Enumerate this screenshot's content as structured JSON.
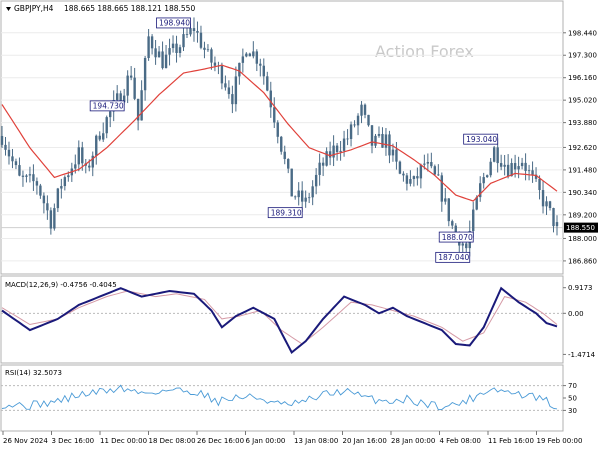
{
  "symbol_label": "GBPJPY,H4",
  "ohlc_label": "188.665 188.665 188.121 188.550",
  "watermark": "Action Forex",
  "colors": {
    "candle": "#4a6b86",
    "ma": "#e0413a",
    "macd_line": "#1a1a7a",
    "macd_signal": "#d59aa6",
    "rsi_line": "#4a9ad6",
    "annotation": "#1a1a7a",
    "price_tag_bg": "#000000",
    "watermark": "#c9c9c9"
  },
  "chart_data": [
    {
      "type": "candlestick",
      "panel": "price",
      "y_ticks": [
        198.44,
        197.3,
        196.16,
        195.02,
        193.88,
        192.62,
        191.48,
        190.34,
        189.2,
        188.0,
        186.86
      ],
      "ylim": [
        186.5,
        199.8
      ],
      "current_price": 188.55,
      "overlay": "moving average (red line)",
      "annotations": [
        {
          "label": "198.940",
          "value": 198.94
        },
        {
          "label": "188.070",
          "value": 188.07
        },
        {
          "label": "189.310",
          "value": 189.31
        },
        {
          "label": "194.730",
          "value": 194.73
        },
        {
          "label": "187.040",
          "value": 187.04
        },
        {
          "label": "193.040",
          "value": 193.04
        }
      ],
      "x_labels": [
        "26 Nov 2024",
        "3 Dec 16:00",
        "11 Dec 00:00",
        "18 Dec 08:00",
        "26 Dec 16:00",
        "6 Jan 00:00",
        "13 Jan 08:00",
        "20 Jan 16:00",
        "28 Jan 00:00",
        "4 Feb 08:00",
        "11 Feb 16:00",
        "19 Feb 00:00"
      ],
      "anchors_price": [
        [
          0,
          193.2
        ],
        [
          5,
          191.0
        ],
        [
          10,
          190.8
        ],
        [
          14,
          188.9
        ],
        [
          17,
          190.8
        ],
        [
          22,
          192.3
        ],
        [
          24,
          191.3
        ],
        [
          28,
          193.4
        ],
        [
          33,
          195.0
        ],
        [
          37,
          196.4
        ],
        [
          39,
          194.0
        ],
        [
          42,
          198.2
        ],
        [
          46,
          197.0
        ],
        [
          51,
          197.8
        ],
        [
          55,
          198.7
        ],
        [
          59,
          197.2
        ],
        [
          63,
          196.3
        ],
        [
          66,
          195.2
        ],
        [
          70,
          197.8
        ],
        [
          74,
          197.0
        ],
        [
          79,
          193.5
        ],
        [
          83,
          190.3
        ],
        [
          87,
          189.8
        ],
        [
          91,
          191.5
        ],
        [
          95,
          192.5
        ],
        [
          99,
          193.1
        ],
        [
          103,
          194.5
        ],
        [
          106,
          192.8
        ],
        [
          110,
          193.0
        ],
        [
          114,
          191.2
        ],
        [
          118,
          190.8
        ],
        [
          121,
          191.8
        ],
        [
          125,
          190.8
        ],
        [
          129,
          188.6
        ],
        [
          133,
          187.5
        ],
        [
          137,
          190.6
        ],
        [
          141,
          192.5
        ],
        [
          145,
          191.6
        ],
        [
          149,
          192.0
        ],
        [
          153,
          190.6
        ],
        [
          156,
          189.6
        ],
        [
          159,
          188.55
        ]
      ],
      "anchors_ma": [
        [
          0,
          194.8
        ],
        [
          8,
          192.6
        ],
        [
          15,
          191.1
        ],
        [
          22,
          191.5
        ],
        [
          30,
          192.6
        ],
        [
          38,
          194.0
        ],
        [
          45,
          195.3
        ],
        [
          52,
          196.4
        ],
        [
          58,
          196.6
        ],
        [
          63,
          196.8
        ],
        [
          68,
          196.5
        ],
        [
          75,
          195.4
        ],
        [
          82,
          193.8
        ],
        [
          88,
          192.6
        ],
        [
          94,
          192.2
        ],
        [
          100,
          192.5
        ],
        [
          106,
          192.9
        ],
        [
          112,
          192.7
        ],
        [
          118,
          192.0
        ],
        [
          124,
          191.2
        ],
        [
          130,
          190.2
        ],
        [
          135,
          189.9
        ],
        [
          140,
          190.8
        ],
        [
          147,
          191.3
        ],
        [
          153,
          191.2
        ],
        [
          159,
          190.4
        ]
      ]
    },
    {
      "type": "line",
      "panel": "macd",
      "label": "MACD(12,26,9) -0.4756 -0.4045",
      "y_ticks": [
        0.9173,
        0.0,
        -1.4714
      ],
      "ylim": [
        -1.6,
        1.05
      ],
      "series": [
        {
          "name": "MACD",
          "anchors": [
            [
              0,
              0.1
            ],
            [
              8,
              -0.6
            ],
            [
              16,
              -0.2
            ],
            [
              22,
              0.3
            ],
            [
              30,
              0.7
            ],
            [
              34,
              0.9
            ],
            [
              40,
              0.6
            ],
            [
              48,
              0.8
            ],
            [
              55,
              0.7
            ],
            [
              60,
              0.1
            ],
            [
              63,
              -0.5
            ],
            [
              67,
              -0.1
            ],
            [
              72,
              0.2
            ],
            [
              78,
              -0.2
            ],
            [
              83,
              -1.4
            ],
            [
              87,
              -1.0
            ],
            [
              92,
              -0.2
            ],
            [
              98,
              0.6
            ],
            [
              104,
              0.3
            ],
            [
              108,
              0.0
            ],
            [
              112,
              0.2
            ],
            [
              116,
              -0.1
            ],
            [
              120,
              -0.3
            ],
            [
              126,
              -0.6
            ],
            [
              130,
              -1.1
            ],
            [
              134,
              -1.15
            ],
            [
              138,
              -0.5
            ],
            [
              143,
              0.9
            ],
            [
              148,
              0.4
            ],
            [
              153,
              0.0
            ],
            [
              156,
              -0.35
            ],
            [
              159,
              -0.47
            ]
          ]
        },
        {
          "name": "Signal",
          "anchors": [
            [
              0,
              0.2
            ],
            [
              8,
              -0.4
            ],
            [
              16,
              -0.2
            ],
            [
              22,
              0.2
            ],
            [
              30,
              0.6
            ],
            [
              36,
              0.8
            ],
            [
              44,
              0.6
            ],
            [
              50,
              0.7
            ],
            [
              58,
              0.5
            ],
            [
              63,
              -0.2
            ],
            [
              68,
              -0.1
            ],
            [
              74,
              0.1
            ],
            [
              80,
              -0.6
            ],
            [
              86,
              -1.1
            ],
            [
              92,
              -0.5
            ],
            [
              100,
              0.4
            ],
            [
              106,
              0.3
            ],
            [
              112,
              0.1
            ],
            [
              118,
              -0.1
            ],
            [
              126,
              -0.5
            ],
            [
              132,
              -1.0
            ],
            [
              138,
              -0.7
            ],
            [
              144,
              0.6
            ],
            [
              150,
              0.4
            ],
            [
              155,
              0.0
            ],
            [
              159,
              -0.4
            ]
          ]
        }
      ]
    },
    {
      "type": "line",
      "panel": "rsi",
      "label": "RSI(14) 32.5073",
      "y_ticks": [
        70,
        50,
        30
      ],
      "ylim": [
        0,
        100
      ],
      "levels": [
        70,
        30
      ],
      "series": [
        {
          "name": "RSI",
          "anchors": [
            [
              0,
              40
            ],
            [
              8,
              38
            ],
            [
              16,
              45
            ],
            [
              22,
              55
            ],
            [
              28,
              60
            ],
            [
              34,
              66
            ],
            [
              40,
              58
            ],
            [
              48,
              63
            ],
            [
              56,
              60
            ],
            [
              62,
              45
            ],
            [
              68,
              52
            ],
            [
              74,
              50
            ],
            [
              80,
              38
            ],
            [
              86,
              42
            ],
            [
              92,
              55
            ],
            [
              98,
              62
            ],
            [
              104,
              50
            ],
            [
              110,
              45
            ],
            [
              116,
              48
            ],
            [
              122,
              40
            ],
            [
              128,
              36
            ],
            [
              134,
              48
            ],
            [
              140,
              66
            ],
            [
              146,
              58
            ],
            [
              152,
              52
            ],
            [
              156,
              45
            ],
            [
              159,
              32.5
            ]
          ]
        }
      ]
    }
  ]
}
